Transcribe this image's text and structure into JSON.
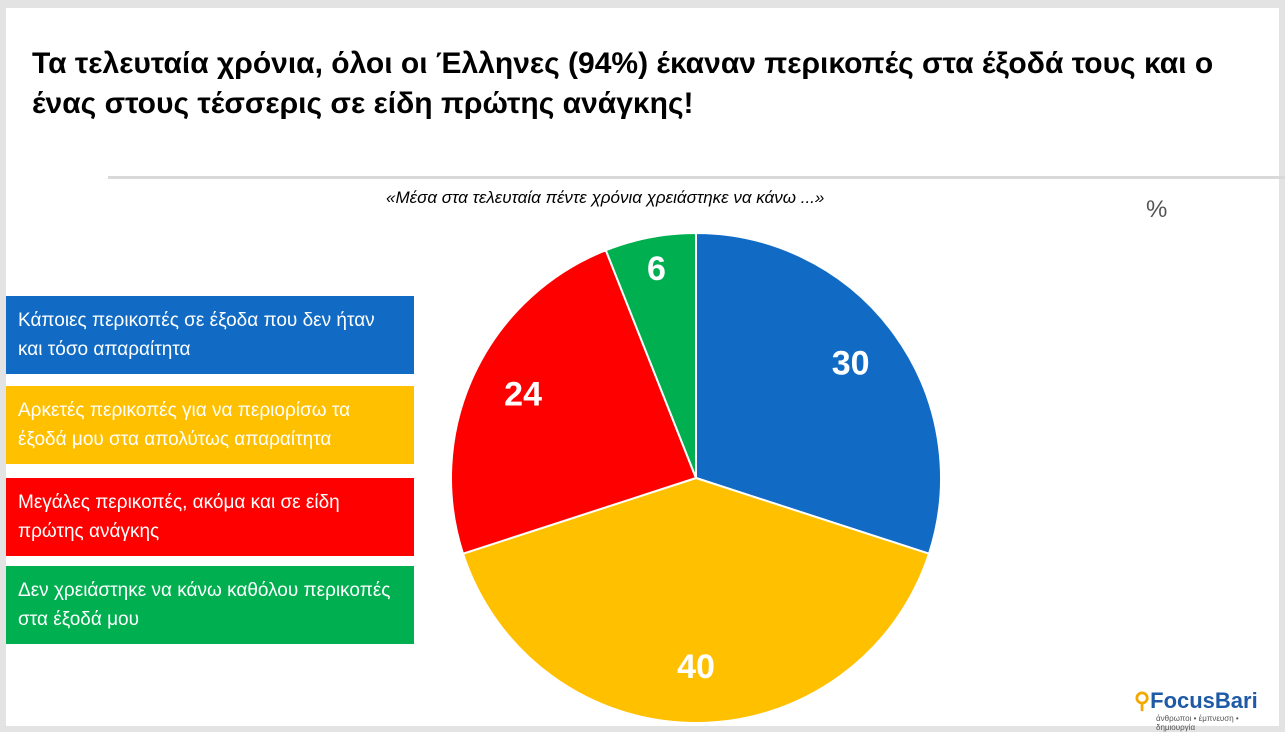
{
  "chart_data": {
    "type": "pie",
    "title": "Τα τελευταία χρόνια, όλοι οι Έλληνες (94%) έκαναν περικοπές στα έξοδά τους και ο ένας στους τέσσερις σε είδη πρώτης ανάγκης!",
    "subtitle": "«Μέσα στα τελευταία πέντε χρόνια χρειάστηκε να κάνω ...»",
    "unit_label": "%",
    "categories": [
      "Κάποιες περικοπές σε έξοδα που δεν ήταν και τόσο απαραίτητα",
      "Αρκετές περικοπές για να περιορίσω τα έξοδά μου στα απολύτως απαραίτητα",
      "Μεγάλες περικοπές, ακόμα και σε είδη πρώτης ανάγκης",
      "Δεν χρειάστηκε να κάνω καθόλου περικοπές στα έξοδά μου"
    ],
    "values": [
      30,
      40,
      24,
      6
    ],
    "colors": [
      "#116bc4",
      "#ffc000",
      "#ff0000",
      "#00b050"
    ]
  },
  "logo": {
    "name": "FocusBari",
    "tagline": "άνθρωποι • έμπνευση • δημιουργία"
  }
}
